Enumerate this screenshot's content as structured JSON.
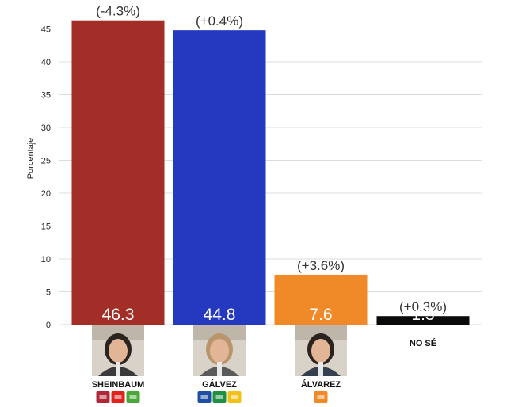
{
  "chart_data": {
    "type": "bar",
    "ylabel": "Porcentaje",
    "ylim": [
      0,
      45
    ],
    "yticks": [
      0,
      5,
      10,
      15,
      20,
      25,
      30,
      35,
      40,
      45
    ],
    "grid": true,
    "categories": [
      "SHEINBAUM",
      "GÁLVEZ",
      "ÁLVAREZ",
      "NO SÉ"
    ],
    "values": [
      46.3,
      44.8,
      7.6,
      1.3
    ],
    "value_labels": [
      "46.3",
      "44.8",
      "7.6",
      "1.3"
    ],
    "changes": [
      "(-4.3%)",
      "(+0.4%)",
      "(+3.6%)",
      "(+0.3%)"
    ],
    "colors": [
      "#a32e28",
      "#2538c0",
      "#f08a28",
      "#0a0a0a"
    ],
    "candidate_photos": [
      "sheinbaum-photo",
      "galvez-photo",
      "alvarez-photo",
      null
    ],
    "party_logos": [
      [
        "morena-logo",
        "pt-logo",
        "pvem-logo"
      ],
      [
        "pan-logo",
        "pri-logo",
        "prd-logo"
      ],
      [
        "mc-logo"
      ],
      []
    ]
  }
}
